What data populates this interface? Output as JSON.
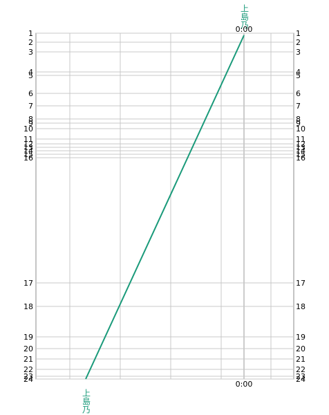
{
  "stations": [
    "1",
    "2",
    "3",
    "4",
    "5",
    "6",
    "7",
    "8",
    "9",
    "10",
    "11",
    "12",
    "13",
    "14",
    "15",
    "16",
    "17",
    "18",
    "19",
    "20",
    "21",
    "22",
    "23",
    "24"
  ],
  "top": {
    "train_label": "上島乃",
    "time": "0:00"
  },
  "bottom": {
    "train_label": "上島乃",
    "time": "0:00"
  }
}
